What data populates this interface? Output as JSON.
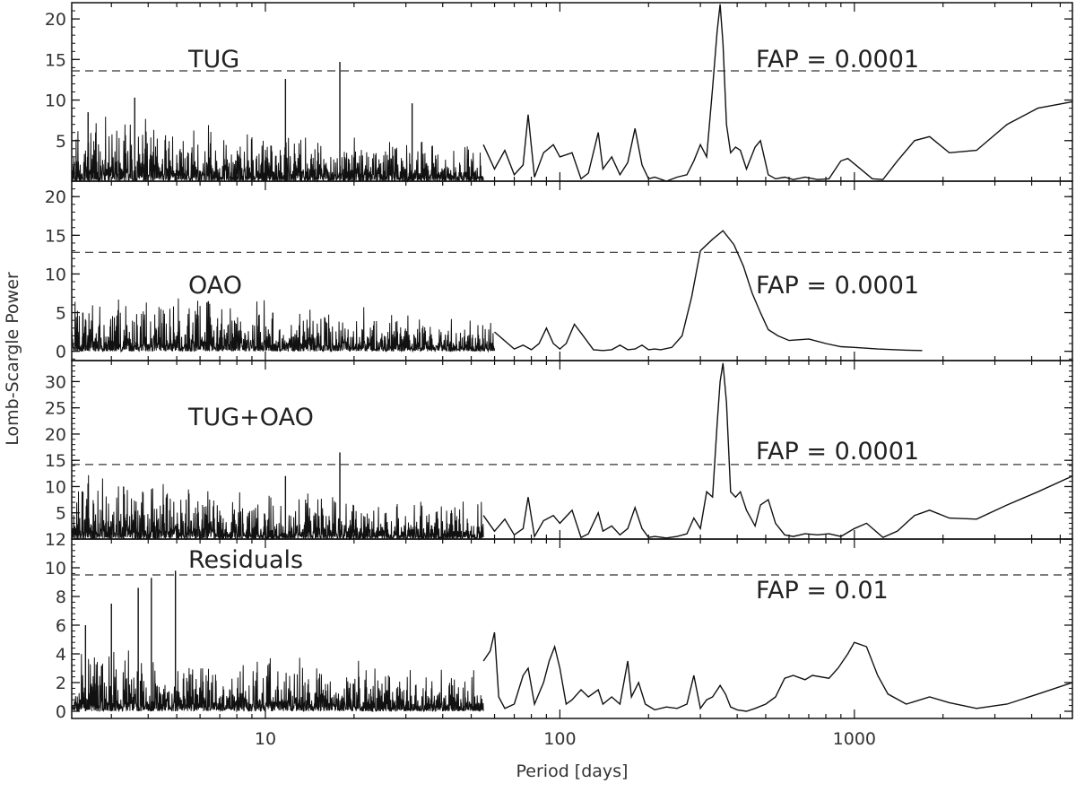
{
  "chart_data": {
    "type": "line",
    "xlabel": "Period [days]",
    "ylabel": "Lomb-Scargle Power",
    "xscale": "log",
    "xlim": [
      2.2,
      5500
    ],
    "xticks": [
      {
        "value": 10,
        "label": "10"
      },
      {
        "value": 100,
        "label": "100"
      },
      {
        "value": 1000,
        "label": "1000"
      }
    ],
    "grid": false,
    "panels": [
      {
        "label": "TUG",
        "fap_label": "FAP = 0.0001",
        "fap_level": 13.6,
        "ylim": [
          0,
          22
        ],
        "yticks": [
          5,
          10,
          15,
          20
        ],
        "seed": 11,
        "series": {
          "x": [
            55,
            60,
            65,
            70,
            75,
            78,
            82,
            88,
            95,
            100,
            110,
            118,
            125,
            135,
            140,
            150,
            160,
            170,
            180,
            190,
            200,
            210,
            230,
            250,
            270,
            285,
            300,
            315,
            330,
            342,
            350,
            358,
            368,
            380,
            395,
            410,
            430,
            460,
            480,
            510,
            540,
            580,
            620,
            680,
            750,
            820,
            900,
            950,
            1050,
            1150,
            1250,
            1400,
            1600,
            1800,
            2100,
            2600,
            3300,
            4200,
            5500
          ],
          "y": [
            4.5,
            1.5,
            3.8,
            0.8,
            2.0,
            8.2,
            0.5,
            3.5,
            4.5,
            3.0,
            3.5,
            0.3,
            1.0,
            6.0,
            1.5,
            3.0,
            0.8,
            2.3,
            6.5,
            2.0,
            0.3,
            0.5,
            0.0,
            0.5,
            0.8,
            2.5,
            4.5,
            3.0,
            11.5,
            18.5,
            21.8,
            17.0,
            7.0,
            3.5,
            4.2,
            3.8,
            1.5,
            4.2,
            5.0,
            0.8,
            0.3,
            0.5,
            0.2,
            0.5,
            0.2,
            0.3,
            2.5,
            2.8,
            1.5,
            0.3,
            0.2,
            2.5,
            5.0,
            5.5,
            3.5,
            3.8,
            7.0,
            9.0,
            9.8
          ]
        },
        "spikes": [
          {
            "x": 3.6,
            "y": 10.3
          },
          {
            "x": 11.7,
            "y": 12.6
          },
          {
            "x": 17.9,
            "y": 14.7
          },
          {
            "x": 31.5,
            "y": 9.6
          },
          {
            "x": 2.5,
            "y": 8.5
          }
        ]
      },
      {
        "label": "OAO",
        "fap_label": "FAP = 0.0001",
        "fap_level": 12.8,
        "ylim": [
          -1.2,
          22
        ],
        "yticks": [
          0,
          5,
          10,
          15,
          20
        ],
        "seed": 23,
        "series": {
          "x": [
            60,
            70,
            75,
            80,
            85,
            90,
            95,
            100,
            105,
            112,
            120,
            130,
            140,
            150,
            160,
            170,
            180,
            190,
            200,
            210,
            220,
            240,
            260,
            280,
            300,
            330,
            358,
            390,
            420,
            450,
            480,
            510,
            550,
            600,
            700,
            800,
            900,
            1000,
            1200,
            1500,
            1700
          ],
          "y": [
            2.5,
            0.3,
            0.8,
            0.2,
            1.0,
            3.0,
            1.0,
            0.3,
            1.0,
            3.5,
            2.0,
            0.2,
            0.1,
            0.2,
            0.8,
            0.2,
            0.3,
            0.8,
            0.2,
            0.3,
            0.2,
            0.5,
            2.0,
            7.0,
            13.0,
            14.5,
            15.6,
            13.8,
            11.0,
            7.5,
            5.0,
            2.8,
            2.0,
            1.4,
            1.6,
            1.0,
            0.6,
            0.5,
            0.3,
            0.15,
            0.1
          ]
        },
        "spikes": [
          {
            "x": 10.6,
            "y": 5.0
          },
          {
            "x": 2.4,
            "y": 5.0
          }
        ]
      },
      {
        "label": "TUG+OAO",
        "fap_label": "FAP = 0.0001",
        "fap_level": 14.2,
        "ylim": [
          0,
          34
        ],
        "yticks": [
          5,
          10,
          15,
          20,
          25,
          30
        ],
        "seed": 37,
        "series": {
          "x": [
            55,
            60,
            65,
            70,
            75,
            78,
            82,
            88,
            95,
            100,
            110,
            118,
            125,
            135,
            140,
            150,
            160,
            170,
            180,
            190,
            200,
            210,
            230,
            250,
            270,
            285,
            300,
            315,
            330,
            342,
            350,
            358,
            368,
            380,
            395,
            410,
            430,
            460,
            480,
            510,
            540,
            580,
            620,
            680,
            750,
            820,
            900,
            1000,
            1100,
            1250,
            1400,
            1600,
            1800,
            2100,
            2600,
            3300,
            4200,
            5500
          ],
          "y": [
            4.5,
            1.5,
            3.8,
            0.8,
            2.0,
            8.0,
            0.5,
            3.5,
            4.5,
            3.0,
            5.5,
            0.3,
            1.0,
            5.0,
            1.5,
            2.5,
            0.8,
            2.0,
            6.0,
            2.0,
            0.3,
            0.5,
            0.2,
            0.5,
            1.0,
            4.0,
            2.0,
            9.0,
            8.0,
            22.0,
            30.0,
            33.5,
            26.0,
            9.0,
            8.0,
            9.0,
            5.5,
            2.5,
            6.5,
            7.5,
            3.0,
            0.8,
            0.5,
            1.0,
            0.8,
            1.0,
            0.5,
            2.0,
            3.0,
            0.3,
            1.5,
            4.5,
            5.5,
            4.0,
            3.8,
            6.5,
            9.0,
            12.0
          ]
        },
        "spikes": [
          {
            "x": 17.9,
            "y": 16.5
          },
          {
            "x": 11.7,
            "y": 12.0
          },
          {
            "x": 3.3,
            "y": 10.0
          },
          {
            "x": 2.4,
            "y": 9.0
          }
        ]
      },
      {
        "label": "Residuals",
        "fap_label": "FAP = 0.01",
        "fap_level": 9.5,
        "ylim": [
          -0.5,
          12
        ],
        "yticks": [
          0,
          2,
          4,
          6,
          8,
          10,
          12
        ],
        "seed": 53,
        "series": {
          "x": [
            55,
            58,
            60,
            62,
            65,
            70,
            75,
            78,
            82,
            88,
            92,
            96,
            100,
            105,
            110,
            118,
            125,
            135,
            140,
            150,
            160,
            170,
            175,
            185,
            195,
            210,
            230,
            250,
            270,
            285,
            300,
            315,
            330,
            350,
            365,
            380,
            400,
            430,
            460,
            500,
            540,
            580,
            620,
            680,
            720,
            820,
            880,
            950,
            1000,
            1100,
            1200,
            1300,
            1500,
            1800,
            2100,
            2600,
            3300,
            4200,
            5500
          ],
          "y": [
            3.5,
            4.2,
            5.5,
            1.0,
            0.2,
            0.5,
            2.5,
            3.0,
            0.5,
            2.0,
            3.5,
            4.5,
            3.0,
            0.5,
            0.8,
            1.5,
            1.0,
            1.5,
            0.5,
            1.0,
            0.5,
            3.5,
            1.0,
            2.0,
            0.5,
            0.1,
            0.3,
            0.2,
            0.5,
            2.5,
            0.2,
            0.8,
            1.0,
            1.8,
            1.2,
            0.3,
            0.1,
            0.0,
            0.2,
            0.5,
            1.0,
            2.3,
            2.5,
            2.2,
            2.5,
            2.3,
            3.0,
            4.0,
            4.8,
            4.5,
            2.5,
            1.2,
            0.5,
            1.0,
            0.6,
            0.2,
            0.5,
            1.2,
            2.0
          ]
        },
        "spikes": [
          {
            "x": 4.95,
            "y": 9.8
          },
          {
            "x": 4.1,
            "y": 9.3
          },
          {
            "x": 3.7,
            "y": 8.6
          },
          {
            "x": 3.0,
            "y": 7.5
          },
          {
            "x": 2.45,
            "y": 6.0
          }
        ]
      }
    ]
  }
}
